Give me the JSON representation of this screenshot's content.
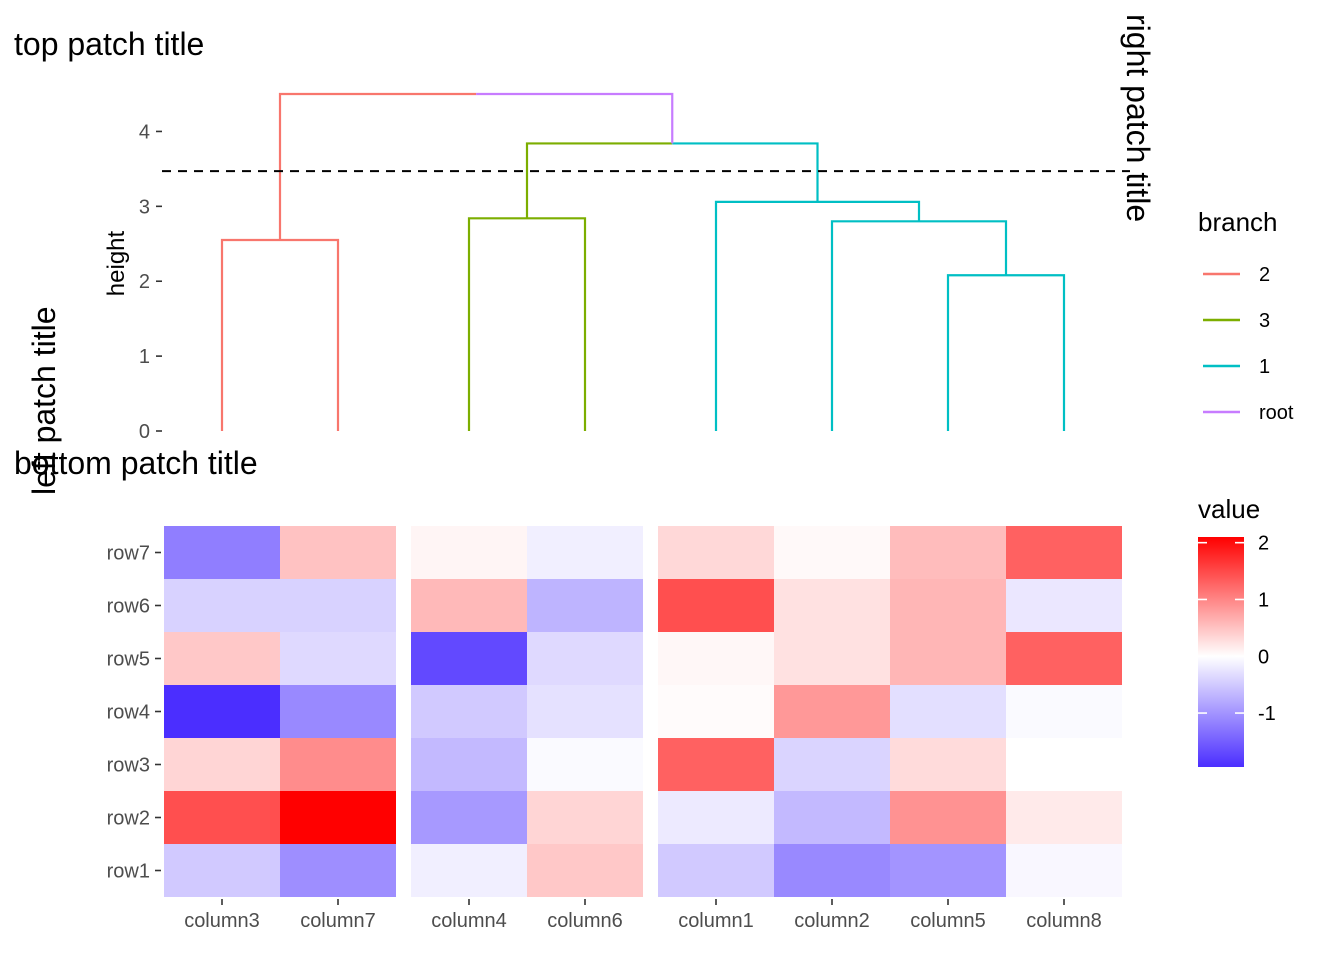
{
  "titles": {
    "top": "top patch title",
    "left": "left patch title",
    "right": "right patch title",
    "bottom": "bottom patch title"
  },
  "chart_data": [
    {
      "type": "dendrogram",
      "ylabel": "height",
      "ylim": [
        0,
        4.7
      ],
      "yticks": [
        0,
        1,
        2,
        3,
        4
      ],
      "cut_height": 3.47,
      "leaves": [
        "column3",
        "column7",
        "column4",
        "column6",
        "column1",
        "column2",
        "column5",
        "column8"
      ],
      "merges": [
        {
          "id": "n1",
          "left": "column5",
          "right": "column8",
          "height": 2.08,
          "branch": "1"
        },
        {
          "id": "n2",
          "left": "column3",
          "right": "column7",
          "height": 2.55,
          "branch": "2"
        },
        {
          "id": "n3",
          "left": "column2",
          "right": "n1",
          "height": 2.8,
          "branch": "1"
        },
        {
          "id": "n4",
          "left": "column4",
          "right": "column6",
          "height": 2.84,
          "branch": "3"
        },
        {
          "id": "n5",
          "left": "column1",
          "right": "n3",
          "height": 3.06,
          "branch": "1"
        },
        {
          "id": "n6",
          "left": "n4",
          "right": "n5",
          "height": 3.84,
          "branch": "root",
          "left_branch": "3",
          "right_branch": "1"
        },
        {
          "id": "n7",
          "left": "n2",
          "right": "n6",
          "height": 4.5,
          "branch": "root",
          "left_branch": "2",
          "right_branch": "root"
        }
      ],
      "legend": {
        "title": "branch",
        "entries": [
          {
            "label": "2",
            "color": "#F8766D"
          },
          {
            "label": "3",
            "color": "#7CAE00"
          },
          {
            "label": "1",
            "color": "#00BFC4"
          },
          {
            "label": "root",
            "color": "#C77CFF"
          }
        ]
      }
    },
    {
      "type": "heatmap",
      "x_groups": [
        [
          "column3",
          "column7"
        ],
        [
          "column4",
          "column6"
        ],
        [
          "column1",
          "column2",
          "column5",
          "column8"
        ]
      ],
      "rows": [
        "row7",
        "row6",
        "row5",
        "row4",
        "row3",
        "row2",
        "row1"
      ],
      "values": {
        "row7": {
          "column3": -1.2,
          "column7": 0.5,
          "column4": 0.08,
          "column6": -0.15,
          "column1": 0.32,
          "column2": 0.05,
          "column5": 0.55,
          "column8": 1.3
        },
        "row6": {
          "column3": -0.42,
          "column7": -0.42,
          "column4": 0.58,
          "column6": -0.7,
          "column1": 1.45,
          "column2": 0.25,
          "column5": 0.6,
          "column8": -0.22
        },
        "row5": {
          "column3": 0.45,
          "column7": -0.35,
          "column4": -1.7,
          "column6": -0.35,
          "column1": 0.07,
          "column2": 0.25,
          "column5": 0.6,
          "column8": 1.3
        },
        "row4": {
          "column3": -1.95,
          "column7": -1.1,
          "column4": -0.5,
          "column6": -0.28,
          "column1": 0.03,
          "column2": 0.85,
          "column5": -0.3,
          "column8": -0.05
        },
        "row3": {
          "column3": 0.35,
          "column7": 0.95,
          "column4": -0.65,
          "column6": -0.05,
          "column1": 1.3,
          "column2": -0.4,
          "column5": 0.3,
          "column8": 0.0
        },
        "row2": {
          "column3": 1.45,
          "column7": 2.1,
          "column4": -0.95,
          "column6": 0.35,
          "column1": -0.2,
          "column2": -0.65,
          "column5": 0.9,
          "column8": 0.17
        },
        "row1": {
          "column3": -0.5,
          "column7": -1.05,
          "column4": -0.15,
          "column6": 0.45,
          "column1": -0.5,
          "column2": -1.1,
          "column5": -1.0,
          "column8": -0.07
        }
      },
      "legend": {
        "title": "value",
        "ticks": [
          2,
          1,
          0,
          -1
        ],
        "low_color": "#4B2EFF",
        "mid_color": "#FFFFFF",
        "high_color": "#FF0000",
        "range": [
          -1.95,
          2.1
        ]
      }
    }
  ]
}
